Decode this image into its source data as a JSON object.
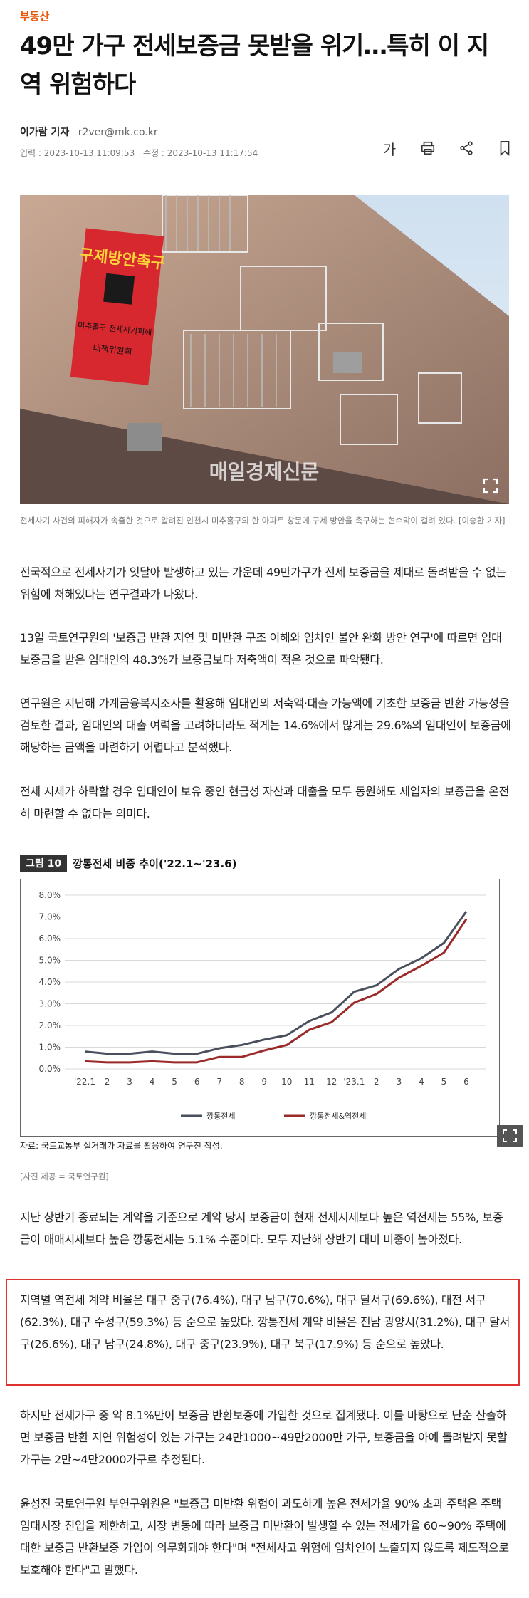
{
  "section": "부동산",
  "headline": "49만 가구 전세보증금 못받을 위기…특히 이 지역 위험하다",
  "byline": {
    "reporter": "이가람 기자",
    "email": "r2ver@mk.co.kr",
    "input_date": "입력 : 2023-10-13 11:09:53",
    "modified_date": "수정 : 2023-10-13 11:17:54"
  },
  "tools": {
    "font_size": "가",
    "icons": [
      "print-icon",
      "share-icon",
      "bookmark-icon"
    ]
  },
  "photo": {
    "banner_top": "구제방안촉구",
    "banner_mid": "미추홀구 전세사기피해",
    "banner_bottom": "대책위원회",
    "watermark": "매일경제신문",
    "caption": "전세사기 사건의 피해자가 속출한 것으로 알려진 인천시 미추홀구의 한 아파트 창문에 구제 방안을 촉구하는 현수막이 걸려 있다. [이승환 기자]"
  },
  "paragraphs": [
    "전국적으로 전세사기가 잇달아 발생하고 있는 가운데 49만가구가 전세 보증금을 제대로 돌려받을 수 없는 위험에 처해있다는 연구결과가 나왔다.",
    "13일 국토연구원의 '보증금 반환 지연 및 미반환 구조 이해와 임차인 불안 완화 방안 연구'에 따르면 임대보증금을 받은 임대인의 48.3%가 보증금보다 저축액이 적은 것으로 파악됐다.",
    "연구원은 지난해 가계금융복지조사를 활용해 임대인의 저축액·대출 가능액에 기초한 보증금 반환 가능성을 검토한 결과, 임대인의 대출 여력을 고려하더라도 적게는 14.6%에서 많게는 29.6%의 임대인이 보증금에 해당하는 금액을 마련하기 어렵다고 분석했다.",
    "전세 시세가 하락할 경우 임대인이 보유 중인 현금성 자산과 대출을 모두 동원해도 세입자의 보증금을 온전히 마련할 수 없다는 의미다.",
    "지난 상반기 종료되는 계약을 기준으로 계약 당시 보증금이 현재 전세시세보다 높은 역전세는 55%, 보증금이 매매시세보다 높은 깡통전세는 5.1% 수준이다. 모두 지난해 상반기 대비 비중이 높아졌다.",
    "지역별 역전세 계약 비율은 대구 중구(76.4%), 대구 남구(70.6%), 대구 달서구(69.6%), 대전 서구(62.3%), 대구 수성구(59.3%) 등 순으로 높았다. 깡통전세 계약 비율은 전남 광양시(31.2%), 대구 달서구(26.6%), 대구 남구(24.8%), 대구 중구(23.9%), 대구 북구(17.9%) 등 순으로 높았다.",
    "하지만 전세가구 중 약 8.1%만이 보증금 반환보증에 가입한 것으로 집계됐다. 이를 바탕으로 단순 산출하면 보증금 반환 지연 위험성이 있는 가구는 24만1000~49만2000만 가구, 보증금을 아예 돌려받지 못할 가구는 2만~4만2000가구로 추정된다.",
    "윤성진 국토연구원 부연구위원은 \"보증금 미반환 위험이 과도하게 높은 전세가율 90% 초과 주택은 주택 임대시장 진입을 제한하고, 시장 변동에 따라 보증금 미반환이 발생할 수 있는 전세가율 60~90% 주택에 대한 보증금 반환보증 가입이 의무화돼야 한다\"며 \"전세사고 위험에 임차인이 노출되지 않도록 제도적으로 보호해야 한다\"고 말했다."
  ],
  "figure": {
    "tag": "그림 10",
    "title": "깡통전세 비중 추이('22.1~'23.6)",
    "source": "자료: 국토교통부 실거래가 자료를 활용하여 연구진 작성.",
    "credit": "[사진 제공 = 국토연구원]"
  },
  "chart_data": {
    "type": "line",
    "title": "깡통전세 비중 추이('22.1~'23.6)",
    "x": [
      "'22.1",
      "2",
      "3",
      "4",
      "5",
      "6",
      "7",
      "8",
      "9",
      "10",
      "11",
      "12",
      "'23.1",
      "2",
      "3",
      "4",
      "5",
      "6"
    ],
    "ylim": [
      0,
      8
    ],
    "yticks": [
      "0.0%",
      "1.0%",
      "2.0%",
      "3.0%",
      "4.0%",
      "5.0%",
      "6.0%",
      "7.0%",
      "8.0%"
    ],
    "grid": true,
    "legend_position": "bottom",
    "series": [
      {
        "name": "깡통전세",
        "color": "#4a4f5e",
        "values": [
          0.8,
          0.7,
          0.7,
          0.8,
          0.7,
          0.7,
          0.95,
          1.1,
          1.35,
          1.55,
          2.2,
          2.6,
          3.55,
          3.85,
          4.6,
          5.1,
          5.8,
          7.25
        ]
      },
      {
        "name": "깡통전세&역전세",
        "color": "#9b2a2a",
        "values": [
          0.35,
          0.3,
          0.3,
          0.35,
          0.3,
          0.3,
          0.55,
          0.55,
          0.85,
          1.1,
          1.8,
          2.15,
          3.05,
          3.45,
          4.2,
          4.75,
          5.35,
          6.9
        ]
      }
    ]
  }
}
